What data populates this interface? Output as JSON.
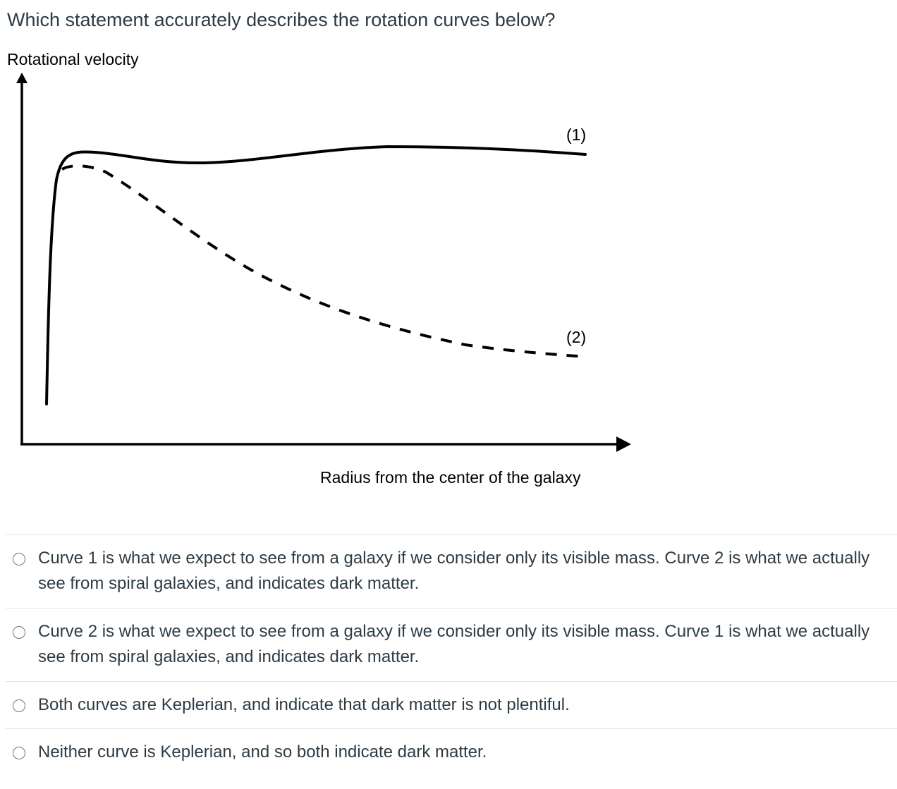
{
  "question": {
    "text": "Which statement accurately describes the rotation curves below?"
  },
  "figure": {
    "y_axis_label": "Rotational velocity",
    "x_axis_label": "Radius from the center of the galaxy",
    "curve_1_label": "(1)",
    "curve_2_label": "(2)"
  },
  "answers": [
    {
      "label": "Curve 1 is what we expect to see from a galaxy if we consider only its visible mass. Curve 2 is what we actually see from spiral galaxies, and indicates dark matter."
    },
    {
      "label": "Curve 2 is what we expect to see from a galaxy if we consider only its visible mass. Curve 1 is what we actually see from spiral galaxies, and indicates dark matter."
    },
    {
      "label": "Both curves are Keplerian, and indicate that dark matter is not plentiful."
    },
    {
      "label": "Neither curve is Keplerian, and so both indicate dark matter."
    }
  ]
}
